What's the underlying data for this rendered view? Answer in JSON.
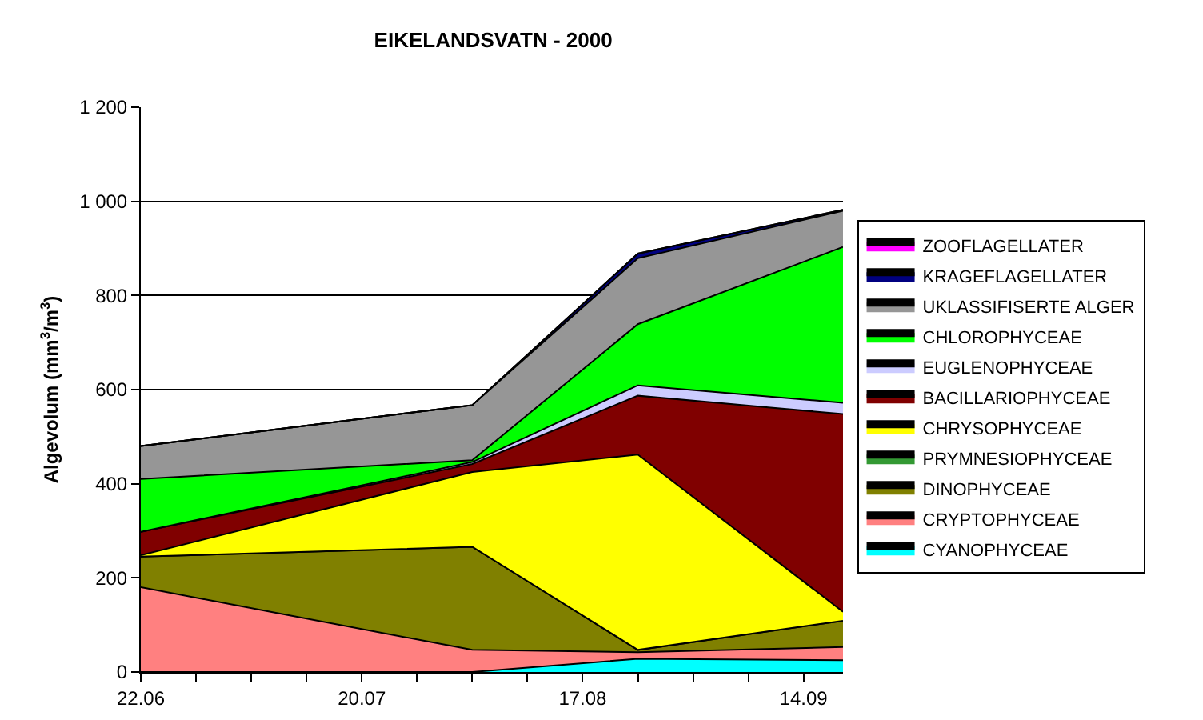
{
  "chart_data": {
    "type": "area",
    "title": "EIKELANDSVATN - 2000",
    "ylabel": "Algevolum (mm$^{3}$/m$^{3}$)",
    "stacked": true,
    "grid": "y",
    "legend": "right",
    "x": [
      "2000-06-22",
      "2000-08-03",
      "2000-08-24",
      "2000-09-19"
    ],
    "xlim": [
      "2000-06-22",
      "2000-09-19"
    ],
    "xticks": [
      {
        "value": "2000-06-22",
        "label": "22.06"
      },
      {
        "value": "2000-06-29",
        "label": null
      },
      {
        "value": "2000-07-06",
        "label": null
      },
      {
        "value": "2000-07-13",
        "label": null
      },
      {
        "value": "2000-07-20",
        "label": "20.07"
      },
      {
        "value": "2000-07-27",
        "label": null
      },
      {
        "value": "2000-08-03",
        "label": null
      },
      {
        "value": "2000-08-10",
        "label": null
      },
      {
        "value": "2000-08-17",
        "label": "17.08"
      },
      {
        "value": "2000-08-24",
        "label": null
      },
      {
        "value": "2000-08-31",
        "label": null
      },
      {
        "value": "2000-09-07",
        "label": null
      },
      {
        "value": "2000-09-14",
        "label": "14.09"
      }
    ],
    "ylim": [
      0,
      1200
    ],
    "yticks": [
      0,
      200,
      400,
      600,
      800,
      {
        "value": 1000,
        "label": "1 000"
      },
      {
        "value": 1200,
        "label": "1 200"
      }
    ],
    "series": [
      {
        "name": "CYANOPHYCEAE",
        "color": "#00ffff",
        "values": [
          0,
          0,
          28,
          25
        ]
      },
      {
        "name": "CRYPTOPHYCEAE",
        "color": "#ff8080",
        "values": [
          180,
          47,
          14,
          28
        ]
      },
      {
        "name": "DINOPHYCEAE",
        "color": "#808000",
        "values": [
          65,
          219,
          5,
          56
        ]
      },
      {
        "name": "PRYMNESIOPHYCEAE",
        "color": "#339933",
        "values": [
          null,
          null,
          null,
          null
        ]
      },
      {
        "name": "CHRYSOPHYCEAE",
        "color": "#ffff00",
        "values": [
          3,
          159,
          415,
          19
        ]
      },
      {
        "name": "BACILLARIOPHYCEAE",
        "color": "#800000",
        "values": [
          50,
          17,
          125,
          420
        ]
      },
      {
        "name": "EUGLENOPHYCEAE",
        "color": "#ccccff",
        "values": [
          0,
          4,
          22,
          24
        ]
      },
      {
        "name": "CHLOROPHYCEAE",
        "color": "#00ff00",
        "values": [
          112,
          4,
          130,
          331
        ]
      },
      {
        "name": "UKLASSIFISERTE ALGER",
        "color": "#969696",
        "values": [
          70,
          117,
          140,
          77
        ]
      },
      {
        "name": "KRAGEFLAGELLATER",
        "color": "#000080",
        "values": [
          0,
          0,
          10,
          2
        ]
      },
      {
        "name": "ZOOFLAGELLATER",
        "color": "#ff00ff",
        "values": [
          null,
          null,
          null,
          null
        ]
      }
    ]
  }
}
